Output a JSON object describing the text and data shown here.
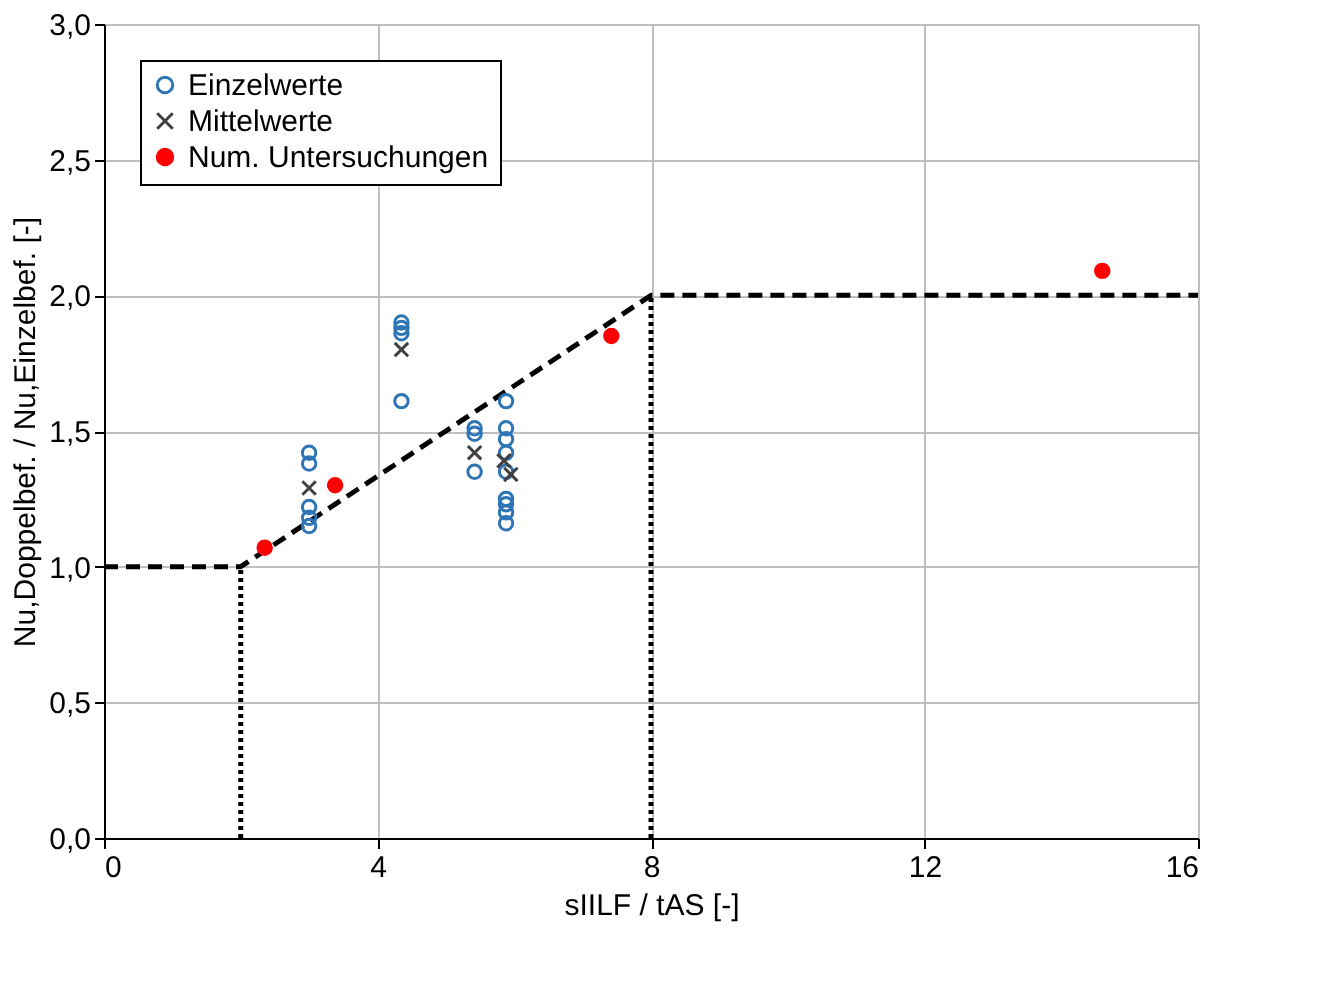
{
  "chart_data": {
    "type": "scatter",
    "xlabel": "sIILF / tAS [-]",
    "ylabel": "Nu,Doppelbef. / Nu,Einzelbef. [-]",
    "xlim": [
      0,
      16
    ],
    "xticks": [
      0,
      4,
      8,
      12,
      16
    ],
    "ylim": [
      0,
      3
    ],
    "yticks": [
      {
        "value": 0,
        "label": "0,0"
      },
      {
        "value": 0.5,
        "label": "0,5"
      },
      {
        "value": 1,
        "label": "1,0"
      },
      {
        "value": 1.5,
        "label": "1,5"
      },
      {
        "value": 2,
        "label": "2,0"
      },
      {
        "value": 2.5,
        "label": "2,5"
      },
      {
        "value": 3,
        "label": "3,0"
      }
    ],
    "grid": true,
    "legend": "top left",
    "series": [
      {
        "name": "Einzelwerte",
        "marker": "circle",
        "color": "#2e75b6",
        "x": [
          3.0,
          3.0,
          3.0,
          3.0,
          3.0,
          4.35,
          4.35,
          4.35,
          4.35,
          5.42,
          5.42,
          5.42,
          5.88,
          5.88,
          5.88,
          5.88,
          5.88,
          5.88,
          5.88,
          5.88,
          5.88
        ],
        "values": [
          1.42,
          1.38,
          1.22,
          1.18,
          1.15,
          1.9,
          1.88,
          1.86,
          1.61,
          1.51,
          1.49,
          1.35,
          1.61,
          1.51,
          1.47,
          1.42,
          1.35,
          1.25,
          1.23,
          1.2,
          1.16
        ]
      },
      {
        "name": "Mittelwerte",
        "marker": "cross",
        "color": "#404040",
        "x": [
          3.0,
          4.35,
          5.42,
          5.85,
          5.95
        ],
        "values": [
          1.29,
          1.8,
          1.42,
          1.39,
          1.34
        ]
      },
      {
        "name": "Num. Untersuchungen",
        "marker": "circle",
        "color": "#ff0000",
        "x": [
          2.35,
          3.38,
          7.42,
          14.6
        ],
        "values": [
          1.07,
          1.3,
          1.85,
          2.09
        ]
      },
      {
        "type": "line",
        "line_style": "dashed",
        "color": "#000000",
        "x": [
          0,
          2,
          8,
          16
        ],
        "values": [
          1,
          1,
          2,
          2
        ]
      },
      {
        "type": "line",
        "line_style": "dotted",
        "color": "#000000",
        "x": [
          2,
          2
        ],
        "values": [
          0,
          1
        ]
      },
      {
        "type": "line",
        "line_style": "dotted",
        "color": "#000000",
        "x": [
          8,
          8
        ],
        "values": [
          0,
          2
        ]
      }
    ]
  }
}
